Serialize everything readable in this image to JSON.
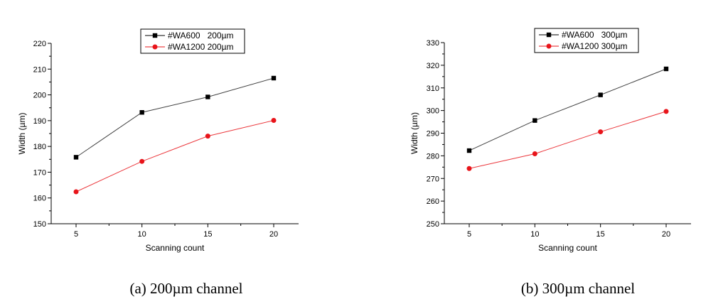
{
  "chart_data": [
    {
      "type": "line",
      "caption": "(a) 200µm channel",
      "xlabel": "Scanning count",
      "ylabel": "Width (µm)",
      "x": [
        5,
        10,
        15,
        20
      ],
      "x_ticks": [
        "5",
        "10",
        "15",
        "20"
      ],
      "ylim": [
        150,
        220
      ],
      "y_ticks": [
        "150",
        "160",
        "170",
        "180",
        "190",
        "200",
        "210",
        "220"
      ],
      "legend_position": "top-center",
      "series": [
        {
          "name": "#WA600   200µm",
          "color": "#000000",
          "marker": "square",
          "values": [
            175.8,
            193.2,
            199.2,
            206.5
          ]
        },
        {
          "name": "#WA1200 200µm",
          "color": "#e8141a",
          "marker": "circle",
          "values": [
            162.4,
            174.2,
            184.0,
            190.1
          ]
        }
      ]
    },
    {
      "type": "line",
      "caption": "(b) 300µm channel",
      "xlabel": "Scanning count",
      "ylabel": "Width (µm)",
      "x": [
        5,
        10,
        15,
        20
      ],
      "x_ticks": [
        "5",
        "10",
        "15",
        "20"
      ],
      "ylim": [
        250,
        330
      ],
      "y_ticks": [
        "250",
        "260",
        "270",
        "280",
        "290",
        "300",
        "310",
        "320",
        "330"
      ],
      "legend_position": "top-center",
      "series": [
        {
          "name": "#WA600   300µm",
          "color": "#000000",
          "marker": "square",
          "values": [
            282.3,
            295.6,
            306.9,
            318.4
          ]
        },
        {
          "name": "#WA1200 300µm",
          "color": "#e8141a",
          "marker": "circle",
          "values": [
            274.4,
            280.9,
            290.6,
            299.6
          ]
        }
      ]
    }
  ]
}
